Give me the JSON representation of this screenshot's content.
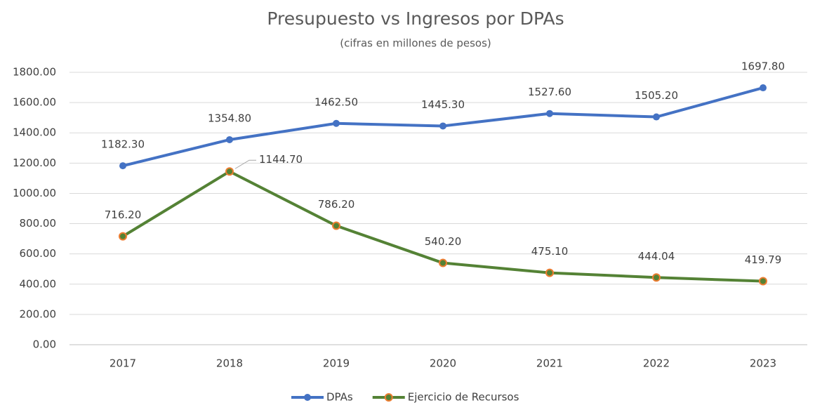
{
  "chart_data": {
    "type": "line",
    "title": "Presupuesto vs Ingresos por DPAs",
    "subtitle": "(cifras en millones de pesos)",
    "categories": [
      "2017",
      "2018",
      "2019",
      "2020",
      "2021",
      "2022",
      "2023"
    ],
    "series": [
      {
        "name": "DPAs",
        "color": "#4472c4",
        "values": [
          1182.3,
          1354.8,
          1462.5,
          1445.3,
          1527.6,
          1505.2,
          1697.8
        ],
        "value_labels": [
          "1182.30",
          "1354.80",
          "1462.50",
          "1445.30",
          "1527.60",
          "1505.20",
          "1697.80"
        ]
      },
      {
        "name": "Ejercicio de Recursos",
        "color": "#548235",
        "marker_edge_color": "#ed7d31",
        "values": [
          716.2,
          1144.7,
          786.2,
          540.2,
          475.1,
          444.04,
          419.79
        ],
        "value_labels": [
          "716.20",
          "1144.70",
          "786.20",
          "540.20",
          "475.10",
          "444.04",
          "419.79"
        ]
      }
    ],
    "ylim": [
      0,
      1800
    ],
    "yticks": [
      {
        "value": 0,
        "label": "0.00"
      },
      {
        "value": 200,
        "label": "200.00"
      },
      {
        "value": 400,
        "label": "400.00"
      },
      {
        "value": 600,
        "label": "600.00"
      },
      {
        "value": 800,
        "label": "800.00"
      },
      {
        "value": 1000,
        "label": "1000.00"
      },
      {
        "value": 1200,
        "label": "1200.00"
      },
      {
        "value": 1400,
        "label": "1400.00"
      },
      {
        "value": 1600,
        "label": "1600.00"
      },
      {
        "value": 1800,
        "label": "1800.00"
      }
    ],
    "grid": true,
    "legend": "bottom"
  }
}
